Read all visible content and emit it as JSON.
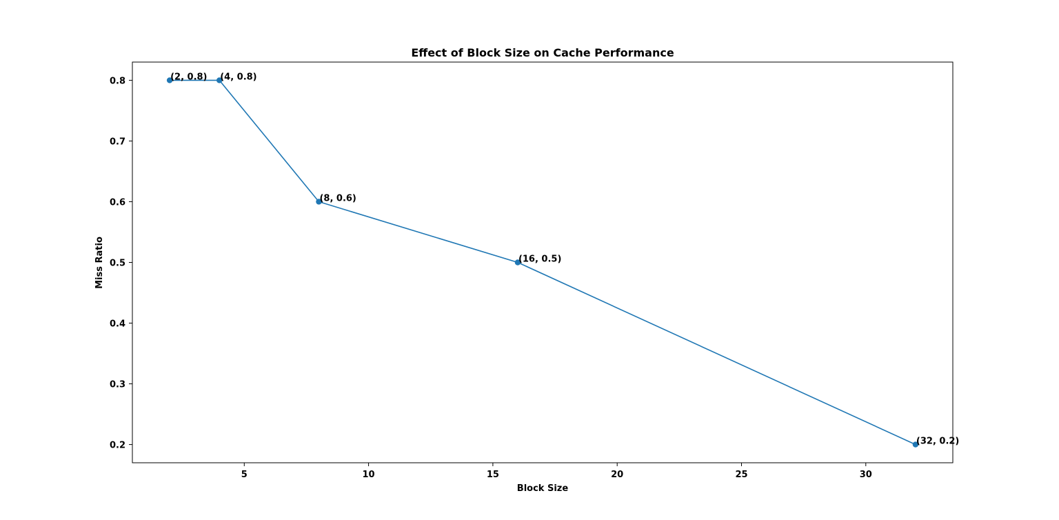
{
  "chart_data": {
    "type": "line",
    "title": "Effect of Block Size on Cache Performance",
    "xlabel": "Block Size",
    "ylabel": "Miss Ratio",
    "xlim": [
      0.5,
      33.5
    ],
    "ylim": [
      0.17,
      0.83
    ],
    "xticks": [
      5,
      10,
      15,
      20,
      25,
      30
    ],
    "xtick_labels": [
      "5",
      "10",
      "15",
      "20",
      "25",
      "30"
    ],
    "yticks": [
      0.2,
      0.3,
      0.4,
      0.5,
      0.6,
      0.7,
      0.8
    ],
    "ytick_labels": [
      "0.2",
      "0.3",
      "0.4",
      "0.5",
      "0.6",
      "0.7",
      "0.8"
    ],
    "grid": false,
    "legend": false,
    "line_color": "#1f77b4",
    "series": [
      {
        "x": [
          2,
          4,
          8,
          16,
          32
        ],
        "values": [
          0.8,
          0.8,
          0.6,
          0.5,
          0.2
        ],
        "markers": true
      }
    ],
    "annotations": [
      "(2, 0.8)",
      "(4, 0.8)",
      "(8, 0.6)",
      "(16, 0.5)",
      "(32, 0.2)"
    ]
  }
}
